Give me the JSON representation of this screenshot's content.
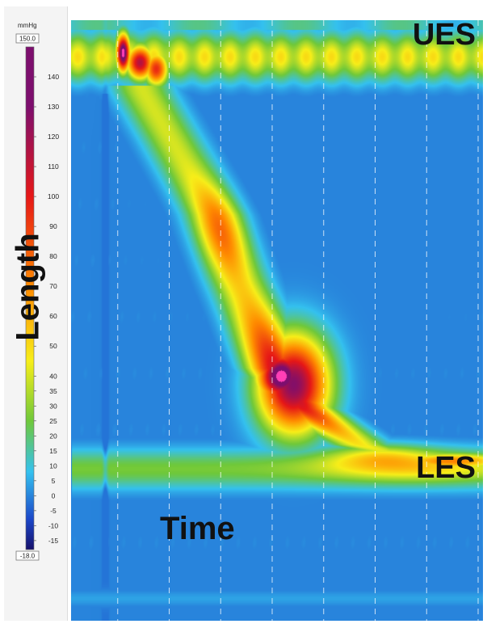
{
  "colorbar": {
    "unit": "mmHg",
    "max_label": "150.0",
    "min_label": "-18.0",
    "ticks": [
      140,
      130,
      120,
      110,
      100,
      90,
      80,
      70,
      60,
      50,
      40,
      35,
      30,
      25,
      20,
      15,
      10,
      5,
      0,
      -5,
      -10,
      -15
    ],
    "colors": {
      "pink": "#ff3fb6",
      "purple": "#7d0e6e",
      "red": "#e61717",
      "orange": "#ff8a00",
      "yellow": "#f7ee19",
      "green": "#6fc83a",
      "cyan": "#34c1ef",
      "blue": "#1b46c8",
      "navy": "#17116b"
    }
  },
  "chart_data": {
    "type": "heatmap",
    "title": "",
    "xlabel": "Time",
    "ylabel": "Length",
    "value_unit": "mmHg",
    "color_range": [
      -18,
      150
    ],
    "annotations": [
      "UES",
      "LES"
    ],
    "bands": [
      {
        "name": "UES",
        "resting_pressure_mmHg": 40
      },
      {
        "name": "LES",
        "resting_pressure_mmHg": 25
      }
    ],
    "peristaltic_peak_mmHg": 150,
    "time_gridlines": 8
  }
}
